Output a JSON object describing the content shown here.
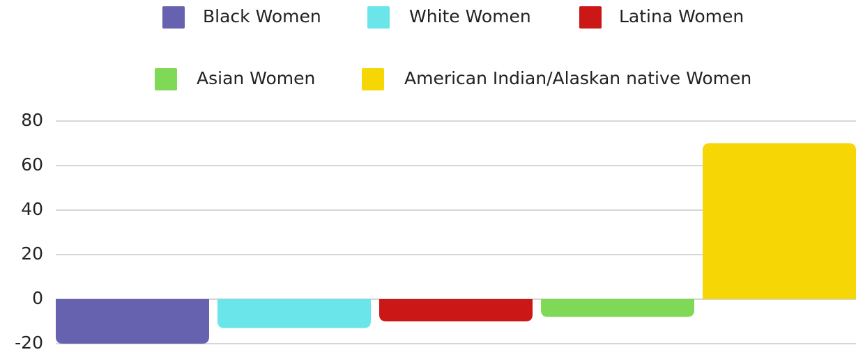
{
  "chart_data": {
    "type": "bar",
    "categories": [
      null
    ],
    "series": [
      {
        "name": "Black Women",
        "color": "#6762b0",
        "values": [
          -20
        ]
      },
      {
        "name": "White Women",
        "color": "#6ae5ea",
        "values": [
          -13
        ]
      },
      {
        "name": "Latina Women",
        "color": "#cc1717",
        "values": [
          -10
        ]
      },
      {
        "name": "Asian Women",
        "color": "#7fd957",
        "values": [
          -8
        ]
      },
      {
        "name": "American Indian/Alaskan native Women",
        "color": "#f6d705",
        "values": [
          70
        ]
      }
    ],
    "ylim": [
      -20,
      80
    ],
    "yticks": [
      -20,
      0,
      20,
      40,
      60,
      80
    ],
    "grid": true,
    "legend": "top"
  }
}
